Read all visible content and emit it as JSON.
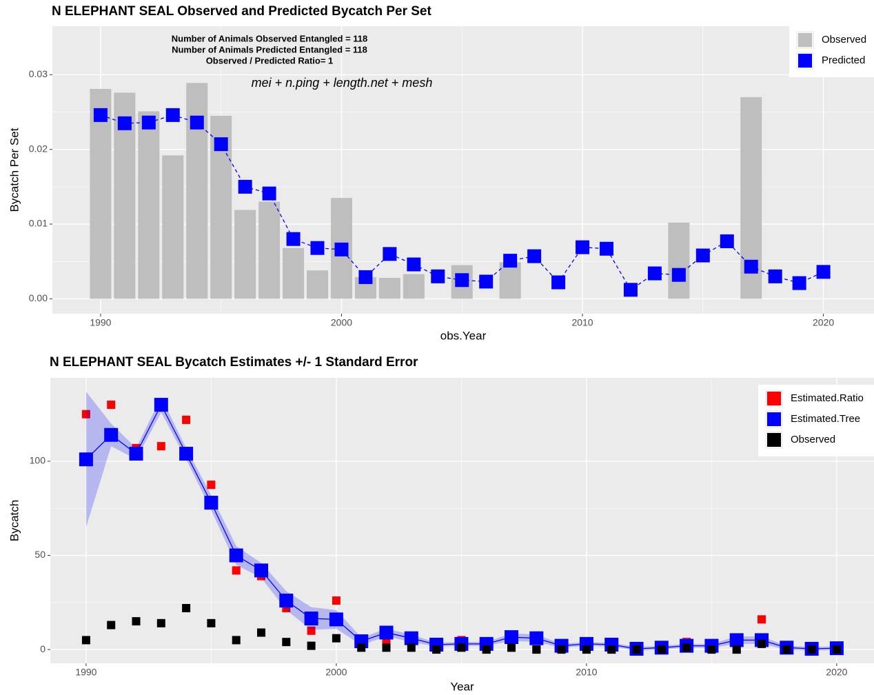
{
  "chart_data": [
    {
      "type": "bar",
      "title": "N ELEPHANT SEAL Observed and Predicted Bycatch Per Set",
      "x_label": "obs.Year",
      "y_label": "Bycatch Per Set",
      "annotations": [
        "Number of Animals Observed Entangled = 118",
        "Number of Animals Predicted Entangled = 118",
        "Observed / Predicted Ratio= 1"
      ],
      "formula": "mei + n.ping + length.net + mesh",
      "x": [
        1990,
        1991,
        1992,
        1993,
        1994,
        1995,
        1996,
        1997,
        1998,
        1999,
        2000,
        2001,
        2002,
        2003,
        2004,
        2005,
        2006,
        2007,
        2008,
        2009,
        2010,
        2011,
        2012,
        2013,
        2014,
        2015,
        2016,
        2017,
        2018,
        2019,
        2020
      ],
      "series": [
        {
          "name": "Observed",
          "color": "#bebebe",
          "type": "bar",
          "values": [
            0.0281,
            0.0276,
            0.0251,
            0.0192,
            0.0289,
            0.0245,
            0.0119,
            0.013,
            0.0068,
            0.0038,
            0.0135,
            0.0029,
            0.0028,
            0.0033,
            0,
            0.0045,
            0,
            0.0049,
            0,
            0,
            0,
            0,
            0,
            0,
            0.0102,
            0,
            0,
            0.027,
            0,
            0,
            0
          ]
        },
        {
          "name": "Predicted",
          "color": "#0000ff",
          "type": "line",
          "dashed": true,
          "values": [
            0.0246,
            0.0235,
            0.0236,
            0.0246,
            0.0236,
            0.0207,
            0.015,
            0.0141,
            0.008,
            0.0068,
            0.0066,
            0.0029,
            0.006,
            0.0046,
            0.003,
            0.0025,
            0.0023,
            0.0051,
            0.0057,
            0.0022,
            0.0069,
            0.0067,
            0.0012,
            0.0034,
            0.0032,
            0.0058,
            0.0077,
            0.0043,
            0.003,
            0.0021,
            0.0036
          ]
        }
      ],
      "xlim": [
        1988,
        2022.1
      ],
      "xticks": [
        1990,
        2000,
        2010,
        2020
      ],
      "ylim": [
        -0.002,
        0.0365
      ],
      "yticks": [
        {
          "value": 0,
          "label": "0.00"
        },
        0.01,
        0.02,
        0.03
      ],
      "grid": true,
      "legend": "top-right"
    },
    {
      "type": "scatter",
      "title": "N ELEPHANT SEAL Bycatch Estimates +/- 1 Standard Error",
      "x_label": "Year",
      "y_label": "Bycatch",
      "x": [
        1990,
        1991,
        1992,
        1993,
        1994,
        1995,
        1996,
        1997,
        1998,
        1999,
        2000,
        2001,
        2002,
        2003,
        2004,
        2005,
        2006,
        2007,
        2008,
        2009,
        2010,
        2011,
        2012,
        2013,
        2014,
        2015,
        2016,
        2017,
        2018,
        2019,
        2020
      ],
      "series": [
        {
          "name": "Estimated.Ratio",
          "color": "#ff0000",
          "type": "points",
          "values": [
            125,
            130,
            107,
            108,
            122,
            87.5,
            42,
            39,
            22,
            10,
            26,
            5,
            5,
            5,
            0,
            5,
            0,
            6,
            0,
            0,
            0,
            0,
            0,
            0,
            4,
            0,
            0,
            16,
            0,
            0,
            0
          ]
        },
        {
          "name": "Estimated.Tree",
          "color": "#0000ff",
          "type": "line",
          "values": [
            101,
            114,
            104,
            130,
            104,
            78,
            50,
            42,
            26,
            16.5,
            16,
            4.4,
            9,
            6,
            2.6,
            3,
            3,
            6.6,
            6,
            2,
            3,
            2.6,
            0.4,
            1,
            2,
            2,
            5,
            5,
            1,
            0.4,
            0.7
          ],
          "errors": [
            36,
            6,
            3,
            4,
            3,
            4,
            5,
            4,
            5,
            6,
            5,
            2,
            2,
            2,
            1,
            1,
            1,
            2,
            2,
            1,
            1,
            1,
            1,
            1,
            1,
            1,
            2,
            2,
            1,
            1,
            1
          ]
        },
        {
          "name": "Observed",
          "color": "#000000",
          "type": "points",
          "values": [
            5,
            13,
            15,
            14,
            22,
            14,
            5,
            9,
            4,
            2,
            6,
            1,
            1,
            1,
            0,
            1,
            0,
            1,
            0,
            0,
            0,
            0,
            0,
            0,
            1,
            0,
            0,
            3,
            0,
            0,
            0
          ]
        }
      ],
      "xlim": [
        1988.57,
        2021.49
      ],
      "xticks": [
        1990,
        2000,
        2010,
        2020
      ],
      "ylim": [
        -7.3,
        144.3
      ],
      "yticks": [
        0,
        50,
        100
      ],
      "grid": true,
      "legend": "top-right"
    }
  ]
}
